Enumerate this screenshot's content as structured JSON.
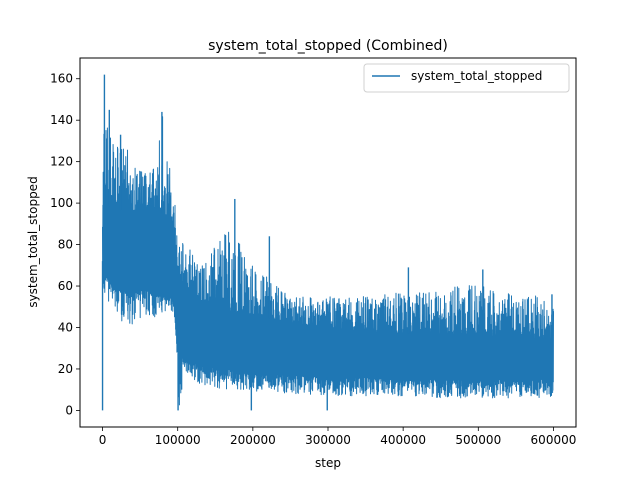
{
  "chart_data": {
    "type": "line",
    "title": "system_total_stopped (Combined)",
    "xlabel": "step",
    "ylabel": "system_total_stopped",
    "xlim": [
      -30000,
      630000
    ],
    "ylim": [
      -8,
      170
    ],
    "x_ticks": [
      0,
      100000,
      200000,
      300000,
      400000,
      500000,
      600000
    ],
    "x_tick_labels": [
      "0",
      "100000",
      "200000",
      "300000",
      "400000",
      "500000",
      "600000"
    ],
    "y_ticks": [
      0,
      20,
      40,
      60,
      80,
      100,
      120,
      140,
      160
    ],
    "y_tick_labels": [
      "0",
      "20",
      "40",
      "60",
      "80",
      "100",
      "120",
      "140",
      "160"
    ],
    "grid": false,
    "legend_position": "top-right",
    "series": [
      {
        "name": "system_total_stopped",
        "color": "#1f77b4",
        "envelope_x": [
          0,
          2000,
          5000,
          10000,
          20000,
          30000,
          40000,
          50000,
          60000,
          70000,
          80000,
          90000,
          95000,
          100000,
          101000,
          110000,
          120000,
          130000,
          150000,
          170000,
          200000,
          250000,
          300000,
          350000,
          400000,
          450000,
          500000,
          550000,
          600000
        ],
        "envelope_low": [
          60,
          55,
          50,
          47,
          44,
          42,
          41,
          42,
          43,
          44,
          45,
          47,
          46,
          22,
          0,
          18,
          15,
          12,
          11,
          10,
          9,
          8,
          7,
          7,
          7,
          6,
          6,
          6,
          6
        ],
        "envelope_high": [
          95,
          162,
          145,
          132,
          128,
          130,
          118,
          117,
          113,
          118,
          144,
          115,
          105,
          90,
          79,
          85,
          75,
          70,
          80,
          88,
          70,
          55,
          55,
          55,
          57,
          58,
          62,
          55,
          56
        ],
        "band_low": [
          72,
          68,
          65,
          62,
          60,
          58,
          58,
          58,
          58,
          57,
          56,
          55,
          53,
          30,
          25,
          26,
          24,
          22,
          21,
          20,
          18,
          17,
          16,
          16,
          15,
          15,
          15,
          15,
          15
        ],
        "band_high": [
          88,
          100,
          100,
          98,
          97,
          96,
          96,
          96,
          95,
          95,
          95,
          93,
          88,
          68,
          60,
          58,
          54,
          50,
          49,
          48,
          46,
          42,
          40,
          38,
          37,
          37,
          36,
          35,
          34
        ],
        "spikes": [
          {
            "x": 0,
            "y": 0
          },
          {
            "x": 2500,
            "y": 162
          },
          {
            "x": 9000,
            "y": 145
          },
          {
            "x": 24000,
            "y": 133
          },
          {
            "x": 79000,
            "y": 144
          },
          {
            "x": 100500,
            "y": 0
          },
          {
            "x": 176000,
            "y": 102
          },
          {
            "x": 198000,
            "y": 0
          },
          {
            "x": 222000,
            "y": 84
          },
          {
            "x": 299000,
            "y": 0
          },
          {
            "x": 407000,
            "y": 69
          },
          {
            "x": 506000,
            "y": 68
          },
          {
            "x": 598000,
            "y": 56
          }
        ]
      }
    ]
  }
}
